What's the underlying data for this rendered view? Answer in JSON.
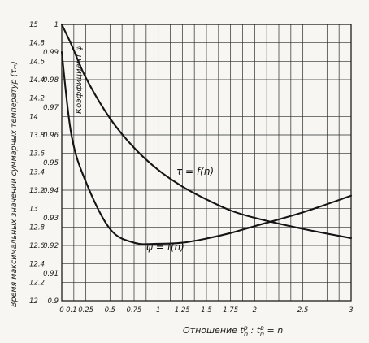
{
  "chart_data": {
    "type": "line",
    "xlabel": "Отношение tₑᴾ : tₑᴱ = n",
    "xlabel_parts": {
      "prefix": "Отношение t",
      "sup1": "р",
      "sub1": "п",
      "mid": " : t",
      "sup2": "в",
      "sub2": "п",
      "suffix": " = n"
    },
    "ylabel_outer": "Время максимальных значений суммарных температур (τₘ)",
    "ylabel_inner": "Коэффициент ψ",
    "x_ticks": [
      "0",
      "0.1",
      "0.25",
      "0.5",
      "0.75",
      "1",
      "1.25",
      "1.5",
      "1.75",
      "2",
      "2.5",
      "3"
    ],
    "x_tick_values": [
      0,
      0.1,
      0.25,
      0.5,
      0.75,
      1,
      1.25,
      1.5,
      1.75,
      2,
      2.5,
      3
    ],
    "y_ticks_tau": [
      "15",
      "14.8",
      "14.6",
      "14.4",
      "14.2",
      "14",
      "13.8",
      "13.6",
      "13.4",
      "13.2",
      "13",
      "12.8",
      "12.6",
      "12.4",
      "12.2",
      "12"
    ],
    "y_ticks_psi": [
      "1",
      "0.99",
      "0.98",
      "0.97",
      "0.96",
      "0.95",
      "0.94",
      "0.93",
      "0.92",
      "0.91",
      "0.9"
    ],
    "xlim": [
      0,
      3
    ],
    "ylim_tau": [
      12,
      15
    ],
    "ylim_psi": [
      0.9,
      1.0
    ],
    "grid": true,
    "series": [
      {
        "name": "τ = f(n)",
        "axis": "tau",
        "x": [
          0,
          0.1,
          0.25,
          0.5,
          0.75,
          1,
          1.25,
          1.5,
          1.75,
          2,
          2.5,
          3
        ],
        "y": [
          15.0,
          14.78,
          14.42,
          13.98,
          13.66,
          13.42,
          13.24,
          13.1,
          12.98,
          12.9,
          12.78,
          12.68
        ]
      },
      {
        "name": "ψ = f(n)",
        "axis": "psi",
        "x": [
          0,
          0.1,
          0.25,
          0.5,
          0.75,
          1,
          1.25,
          1.5,
          1.75,
          2,
          2.5,
          3
        ],
        "y": [
          0.99,
          0.96,
          0.943,
          0.926,
          0.921,
          0.9206,
          0.921,
          0.9225,
          0.9245,
          0.927,
          0.932,
          0.938
        ]
      }
    ]
  },
  "labels": {
    "tau_curve": "τ = f(n)",
    "psi_curve": "ψ = f(n)"
  }
}
